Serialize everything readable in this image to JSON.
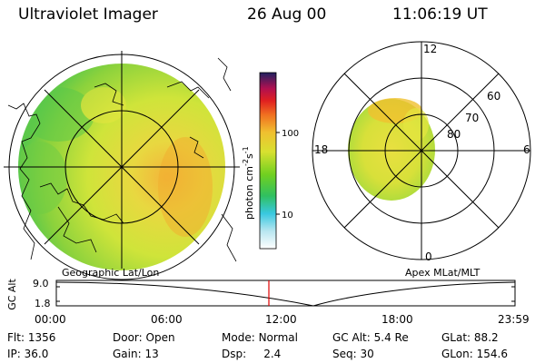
{
  "header": {
    "instrument": "Ultraviolet Imager",
    "date": "26 Aug 00",
    "time": "11:06:19 UT"
  },
  "colorbar": {
    "unit_label": "photon cm",
    "unit_exp1": "-2",
    "unit_s": "s",
    "unit_exp2": "-1",
    "tick_high": "100",
    "tick_low": "10"
  },
  "left_map": {
    "caption": "Geographic Lat/Lon"
  },
  "right_map": {
    "caption": "Apex MLat/MLT",
    "mlt_labels": {
      "top": "12",
      "left": "18",
      "right": "6",
      "bottom": "0"
    },
    "mlat_labels": [
      "60",
      "70",
      "80"
    ]
  },
  "timeline": {
    "ylabel": "GC Alt",
    "y_top": "9.0",
    "y_bottom": "1.8",
    "x_ticks": [
      "00:00",
      "06:00",
      "12:00",
      "18:00",
      "23:59"
    ]
  },
  "info": {
    "flt": {
      "label": "Flt:",
      "value": "1356"
    },
    "ip": {
      "label": "IP:",
      "value": "36.0"
    },
    "door": {
      "label": "Door:",
      "value": "Open"
    },
    "gain": {
      "label": "Gain:",
      "value": "13"
    },
    "mode": {
      "label": "Mode:",
      "value": "Normal"
    },
    "dsp": {
      "label": "Dsp:",
      "value": "2.4"
    },
    "gcalt": {
      "label": "GC Alt:",
      "value": "5.4 Re"
    },
    "seq": {
      "label": "Seq:",
      "value": "30"
    },
    "glat": {
      "label": "GLat:",
      "value": "88.2"
    },
    "glon": {
      "label": "GLon:",
      "value": "154.6"
    }
  },
  "colors": {
    "marker": "#e00000",
    "image_green": "#7ed23c",
    "image_yellow": "#e6e640",
    "image_orange": "#f0b030"
  }
}
